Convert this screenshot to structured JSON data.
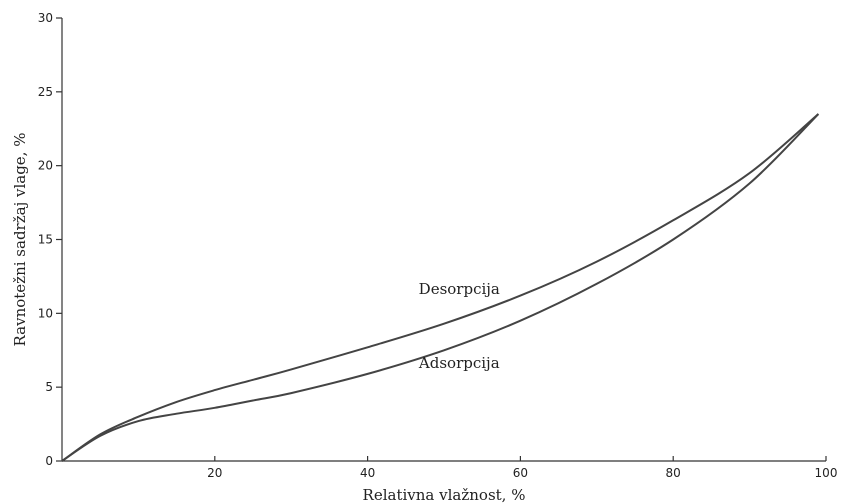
{
  "chart_data": {
    "type": "line",
    "title": "",
    "xlabel": "Relativna vlažnost, %",
    "ylabel": "Ravnotežni sadržaj vlage, %",
    "xlim": [
      0,
      100
    ],
    "ylim": [
      0,
      30
    ],
    "xticks": [
      20,
      40,
      60,
      80,
      100
    ],
    "xtick_labels": [
      "20",
      "40",
      "60",
      "80",
      "100"
    ],
    "yticks": [
      0,
      5,
      10,
      15,
      20,
      25,
      30
    ],
    "ytick_labels": [
      "0",
      "5",
      "10",
      "15",
      "20",
      "25",
      "30"
    ],
    "grid": false,
    "legend": "none",
    "series": [
      {
        "name": "Desorpcija",
        "color": "#444444",
        "x": [
          0,
          5,
          10,
          15,
          20,
          25,
          30,
          40,
          50,
          60,
          70,
          80,
          90,
          99
        ],
        "y": [
          0,
          1.8,
          3.0,
          4.0,
          4.8,
          5.5,
          6.2,
          7.7,
          9.3,
          11.2,
          13.5,
          16.3,
          19.5,
          23.5
        ]
      },
      {
        "name": "Adsorpcija",
        "color": "#444444",
        "x": [
          0,
          5,
          10,
          15,
          20,
          25,
          30,
          40,
          50,
          60,
          70,
          80,
          90,
          99
        ],
        "y": [
          0,
          1.7,
          2.7,
          3.2,
          3.6,
          4.1,
          4.6,
          5.9,
          7.5,
          9.5,
          12.0,
          15.0,
          18.8,
          23.5
        ]
      }
    ],
    "annotations": [
      {
        "text": "Desorpcija",
        "x": 52,
        "y": 11.3
      },
      {
        "text": "Adsorpcija",
        "x": 52,
        "y": 6.3
      }
    ]
  }
}
